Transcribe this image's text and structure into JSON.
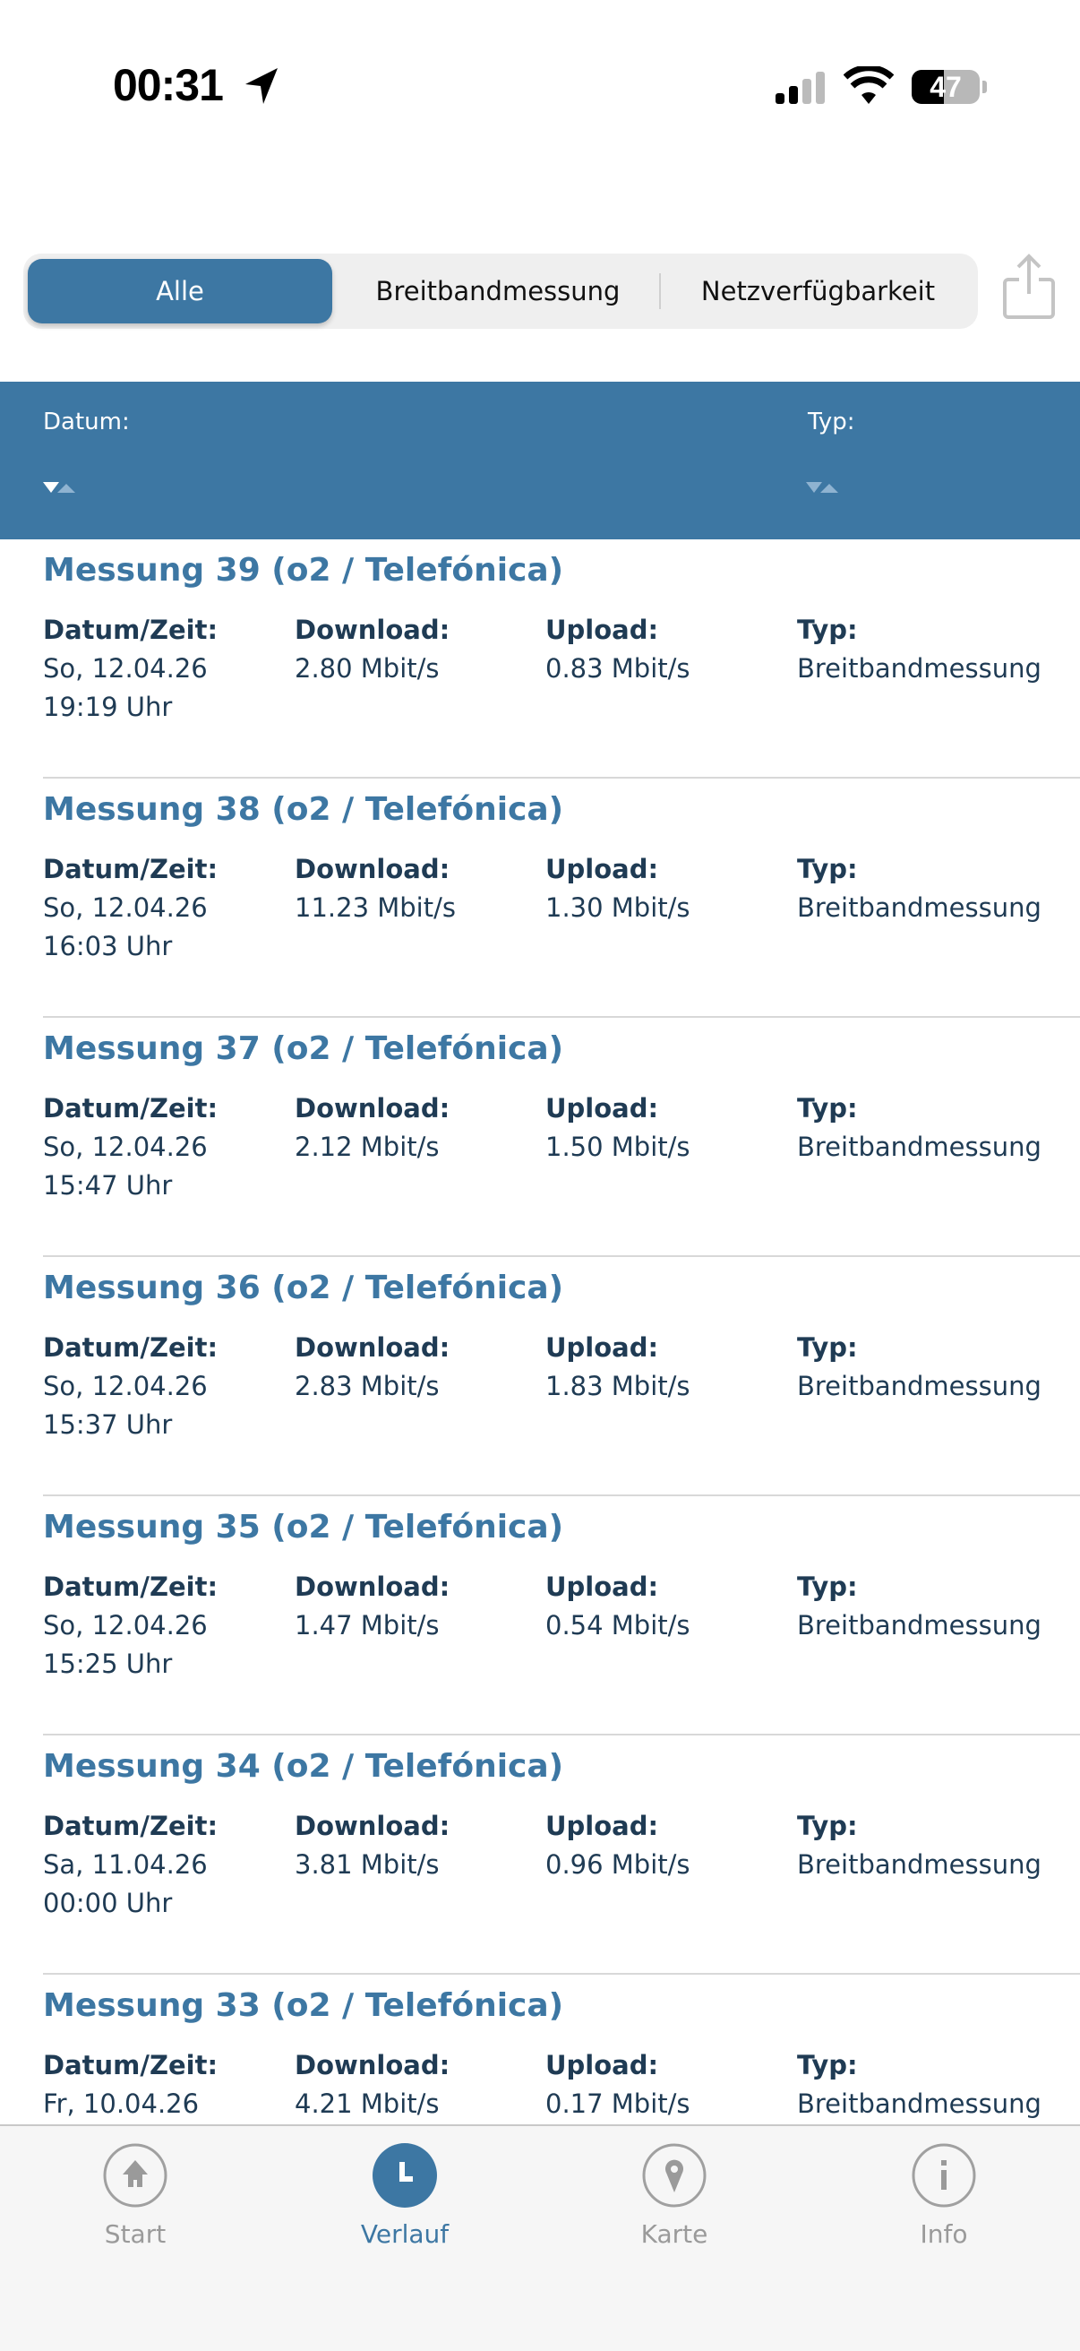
{
  "status_bar": {
    "time": "00:31",
    "battery": "47",
    "battery_level": 47
  },
  "segmented": {
    "items": [
      {
        "label": "Alle",
        "active": true
      },
      {
        "label": "Breitbandmessung",
        "active": false
      },
      {
        "label": "Netzverfügbarkeit",
        "active": false
      }
    ]
  },
  "table_header": {
    "date": "Datum:",
    "type": "Typ:"
  },
  "labels": {
    "datetime": "Datum/Zeit:",
    "download": "Download:",
    "upload": "Upload:",
    "type": "Typ:"
  },
  "measurements": [
    {
      "title": "Messung 39 (o2 / Telefónica)",
      "date": "So, 12.04.26",
      "time": "19:19 Uhr",
      "download": "2.80 Mbit/s",
      "upload": "0.83 Mbit/s",
      "type": "Breitbandmessung"
    },
    {
      "title": "Messung 38 (o2 / Telefónica)",
      "date": "So, 12.04.26",
      "time": "16:03 Uhr",
      "download": "11.23 Mbit/s",
      "upload": "1.30 Mbit/s",
      "type": "Breitbandmessung"
    },
    {
      "title": "Messung 37 (o2 / Telefónica)",
      "date": "So, 12.04.26",
      "time": "15:47 Uhr",
      "download": "2.12 Mbit/s",
      "upload": "1.50 Mbit/s",
      "type": "Breitbandmessung"
    },
    {
      "title": "Messung 36 (o2 / Telefónica)",
      "date": "So, 12.04.26",
      "time": "15:37 Uhr",
      "download": "2.83 Mbit/s",
      "upload": "1.83 Mbit/s",
      "type": "Breitbandmessung"
    },
    {
      "title": "Messung 35 (o2 / Telefónica)",
      "date": "So, 12.04.26",
      "time": "15:25 Uhr",
      "download": "1.47 Mbit/s",
      "upload": "0.54 Mbit/s",
      "type": "Breitbandmessung"
    },
    {
      "title": "Messung 34 (o2 / Telefónica)",
      "date": "Sa, 11.04.26",
      "time": "00:00 Uhr",
      "download": "3.81 Mbit/s",
      "upload": "0.96 Mbit/s",
      "type": "Breitbandmessung"
    },
    {
      "title": "Messung 33 (o2 / Telefónica)",
      "date": "Fr, 10.04.26",
      "time": "",
      "download": "4.21 Mbit/s",
      "upload": "0.17 Mbit/s",
      "type": "Breitbandmessung"
    }
  ],
  "tabbar": {
    "items": [
      {
        "label": "Start",
        "icon": "home-icon"
      },
      {
        "label": "Verlauf",
        "icon": "clock-icon",
        "active": true
      },
      {
        "label": "Karte",
        "icon": "map-pin-icon"
      },
      {
        "label": "Info",
        "icon": "info-icon"
      }
    ]
  },
  "colors": {
    "accent": "#3d77a3",
    "text": "#1f3b54",
    "inactive": "#9a9a9a"
  }
}
